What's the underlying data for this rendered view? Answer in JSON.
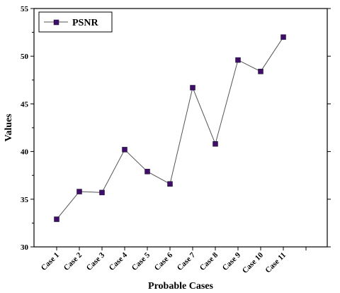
{
  "chart_data": {
    "type": "line",
    "categories": [
      "Case 1",
      "Case 2",
      "Case 3",
      "Case 4",
      "Case 5",
      "Case 6",
      "Case 7",
      "Case 8",
      "Case 9",
      "Case 10",
      "Case 11"
    ],
    "series": [
      {
        "name": "PSNR",
        "values": [
          32.9,
          35.8,
          35.7,
          40.2,
          37.9,
          36.6,
          46.7,
          40.8,
          49.6,
          48.4,
          52.0
        ],
        "color": "#3d0f6b",
        "marker": "square"
      }
    ],
    "xlabel": "Probable Cases",
    "ylabel": "Values",
    "ylim": [
      30,
      55
    ],
    "yticks": [
      30,
      35,
      40,
      45,
      50,
      55
    ],
    "grid": false,
    "legend_position": "top-left"
  }
}
